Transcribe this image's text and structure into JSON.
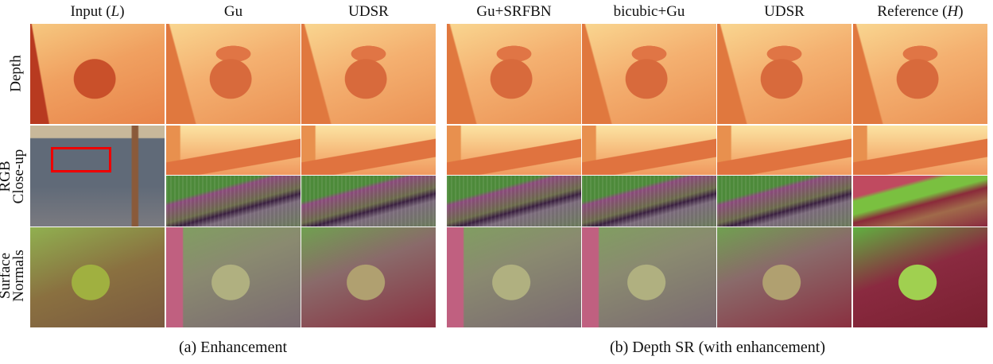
{
  "columns": [
    {
      "parts": [
        "Input (",
        "L",
        ")"
      ]
    },
    {
      "parts": [
        "Gu"
      ]
    },
    {
      "parts": [
        "UDSR"
      ]
    },
    {
      "parts": [
        "Gu+SRFBN"
      ]
    },
    {
      "parts": [
        "bicubic+Gu"
      ]
    },
    {
      "parts": [
        "UDSR"
      ]
    },
    {
      "parts": [
        "Reference (",
        "H",
        ")"
      ]
    }
  ],
  "rows": {
    "depth": "Depth",
    "closeup": [
      "RGB",
      "Close-up"
    ],
    "normals": [
      "Surface",
      "Normals"
    ]
  },
  "captions": [
    "(a) Enhancement",
    "(b) Depth SR (with enhancement)"
  ]
}
